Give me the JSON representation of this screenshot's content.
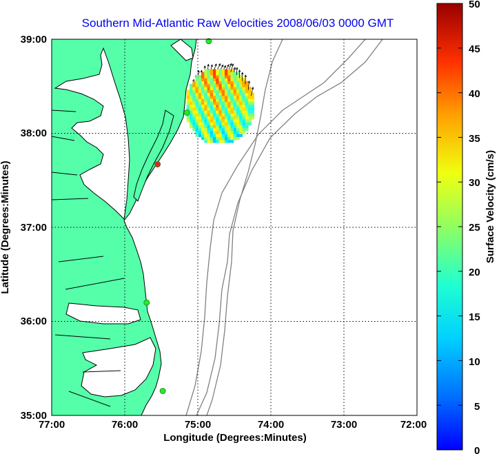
{
  "title": "Southern Mid-Atlantic Raw Velocities 2008/06/03 0000 GMT",
  "x_axis": {
    "label": "Longitude (Degrees:Minutes)",
    "ticks": [
      "77:00",
      "76:00",
      "75:00",
      "74:00",
      "73:00",
      "72:00"
    ],
    "tick_values": [
      -77,
      -76,
      -75,
      -74,
      -73,
      -72
    ]
  },
  "y_axis": {
    "label": "Latitude (Degrees:Minutes)",
    "ticks": [
      "39:00",
      "38:00",
      "37:00",
      "36:00",
      "35:00"
    ],
    "tick_values": [
      39,
      38,
      37,
      36,
      35
    ]
  },
  "colorbar": {
    "label": "Surface Velocity (cm/s)",
    "ticks": [
      "50",
      "45",
      "40",
      "35",
      "30",
      "25",
      "20",
      "15",
      "10",
      "5",
      "0"
    ],
    "range": [
      0,
      50
    ],
    "colormap": "jet"
  },
  "colors": {
    "land": "#55ffaa",
    "coastline": "#000000",
    "bathymetry": "#808080",
    "grid": "#000000",
    "title": "#0000ee",
    "station_ok": "#22ee22",
    "station_alert": "#ee2222"
  },
  "stations": [
    {
      "lon": -74.85,
      "lat": 38.98,
      "status": "ok"
    },
    {
      "lon": -75.15,
      "lat": 38.22,
      "status": "ok"
    },
    {
      "lon": -75.55,
      "lat": 37.67,
      "status": "alert"
    },
    {
      "lon": -75.7,
      "lat": 36.2,
      "status": "ok"
    },
    {
      "lon": -75.48,
      "lat": 35.26,
      "status": "ok"
    }
  ],
  "chart_data": {
    "type": "heatmap",
    "title": "Southern Mid-Atlantic Raw Velocities 2008/06/03 0000 GMT",
    "xlabel": "Longitude (Degrees:Minutes)",
    "ylabel": "Latitude (Degrees:Minutes)",
    "xlim": [
      -77,
      -72
    ],
    "ylim": [
      35,
      39
    ],
    "grid": true,
    "velocity_field": {
      "lon_range": [
        -75.15,
        -74.25
      ],
      "lat_range": [
        37.9,
        38.68
      ],
      "speed_cm_s_range": [
        15,
        42
      ],
      "predominant_flow": "north-northeast"
    }
  }
}
